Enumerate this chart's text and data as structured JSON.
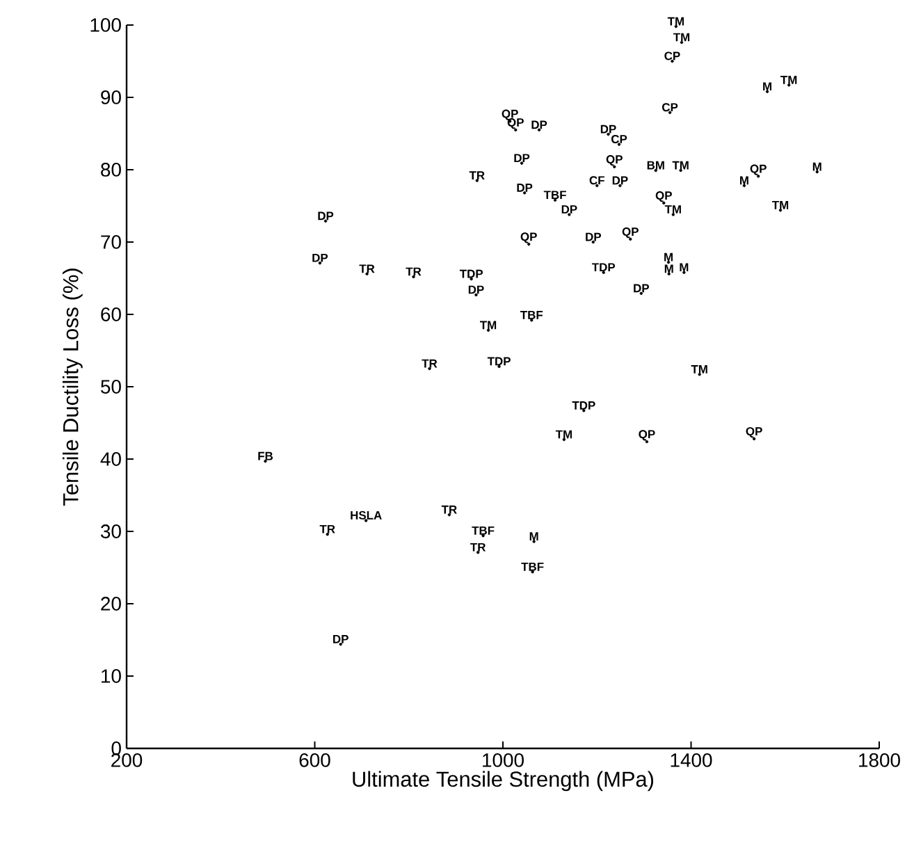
{
  "chart_data": {
    "type": "scatter",
    "xlabel": "Ultimate Tensile Strength (MPa)",
    "ylabel": "Tensile Ductility Loss (%)",
    "xlim": [
      200,
      1800
    ],
    "xticks": [
      200,
      600,
      1000,
      1400,
      1800
    ],
    "ylim": [
      0,
      100
    ],
    "yticks": [
      0,
      10,
      20,
      30,
      40,
      50,
      60,
      70,
      80,
      90,
      100
    ],
    "grid": false,
    "marker": "circle",
    "series": [
      {
        "color": "#000000",
        "x": [
          1015,
          1027,
          1077,
          1040,
          945,
          1046,
          1111,
          1141,
          623,
          1055,
          611,
          711,
          810,
          933,
          943,
          969,
          1061,
          844,
          992,
          1368,
          1380,
          1360,
          1562,
          1608,
          1355,
          1224,
          1247,
          1237,
          1325,
          1378,
          1200,
          1249,
          1513,
          1543,
          1668,
          1342,
          1362,
          1590,
          1192,
          1271,
          1214,
          1352,
          1353,
          1385,
          1294,
          1418,
          1172,
          1130,
          1306,
          1534,
          495,
          627,
          709,
          886,
          958,
          947,
          1066,
          1063,
          655
        ],
        "values": [
          86.7,
          85.5,
          85.5,
          80.9,
          78.5,
          76.8,
          75.8,
          73.8,
          72.9,
          69.7,
          67.1,
          65.6,
          65.2,
          64.9,
          62.7,
          57.8,
          59.2,
          52.5,
          52.8,
          99.8,
          97.6,
          95.0,
          90.8,
          91.7,
          87.9,
          84.9,
          83.5,
          80.4,
          79.9,
          79.9,
          77.8,
          77.8,
          77.8,
          79.1,
          79.7,
          75.4,
          73.8,
          74.4,
          70.0,
          70.4,
          65.8,
          67.2,
          65.6,
          65.8,
          62.9,
          51.7,
          46.7,
          42.7,
          42.4,
          42.8,
          39.7,
          29.6,
          31.5,
          32.3,
          29.4,
          27.1,
          28.6,
          24.4,
          14.4
        ],
        "value_labels": [
          "QP",
          "QP",
          "DP",
          "DP",
          "TR",
          "DP",
          "TBF",
          "DP",
          "DP",
          "QP",
          "DP",
          "TR",
          "TR",
          "TDP",
          "DP",
          "TM",
          "TBF",
          "TR",
          "TDP",
          "TM",
          "TM",
          "CP",
          "M",
          "TM",
          "CP",
          "DP",
          "CP",
          "QP",
          "BM",
          "TM",
          "CF",
          "DP",
          "M",
          "QP",
          "M",
          "QP",
          "TM",
          "TM",
          "DP",
          "QP",
          "TDP",
          "M",
          "M",
          "M",
          "DP",
          "TM",
          "TDP",
          "TM",
          "QP",
          "QP",
          "FB",
          "TR",
          "HSLA",
          "TR",
          "TBF",
          "TR",
          "M",
          "TBF",
          "DP"
        ]
      }
    ]
  }
}
